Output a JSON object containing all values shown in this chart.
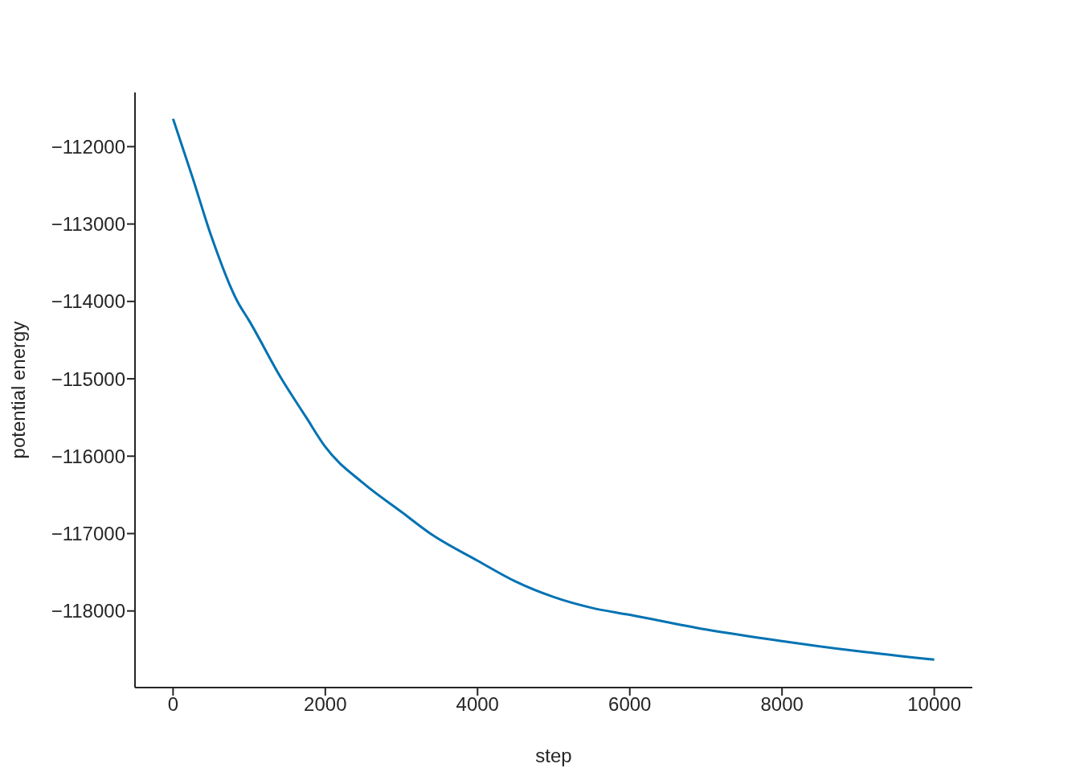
{
  "chart_data": {
    "type": "line",
    "xlabel": "step",
    "ylabel": "potential energy",
    "x": [
      0,
      250,
      500,
      845,
      1000,
      1425,
      1750,
      2000,
      2500,
      3000,
      3380,
      4000,
      4500,
      5000,
      5500,
      6000,
      7000,
      8000,
      9000,
      10000
    ],
    "series": [
      {
        "color": "#0072b2",
        "values": [
          -111640,
          -112380,
          -113150,
          -114000,
          -114250,
          -115000,
          -115500,
          -115880,
          -116350,
          -116720,
          -117000,
          -117350,
          -117620,
          -117820,
          -117960,
          -118050,
          -118240,
          -118390,
          -118520,
          -118630
        ]
      }
    ],
    "xlim": [
      -500,
      10500
    ],
    "xticks": [
      0,
      2000,
      4000,
      6000,
      8000,
      10000
    ],
    "ylim": [
      -118990,
      -111300
    ],
    "yticks": [
      -118000,
      -117000,
      -116000,
      -115000,
      -114000,
      -113000,
      -112000
    ],
    "grid": false,
    "legend": false
  }
}
